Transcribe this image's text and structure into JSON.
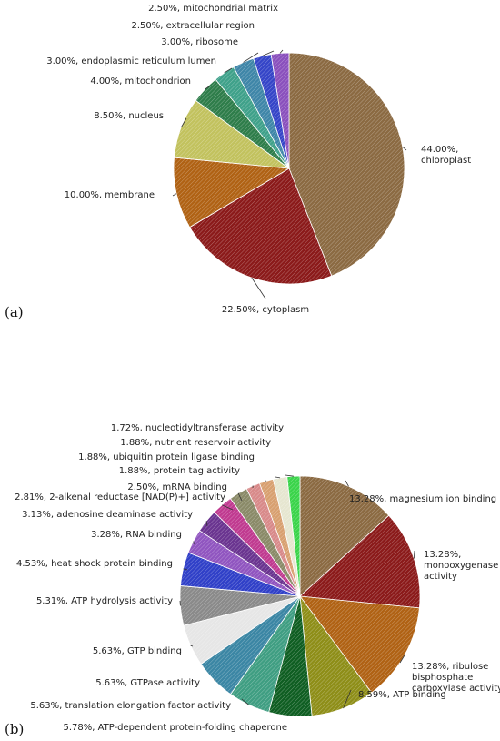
{
  "chart_data": [
    {
      "type": "pie",
      "panel_label": "(a)",
      "start_angle_deg": 0,
      "slices": [
        {
          "label": "44.00%,",
          "label2": "chloroplast",
          "value": 44.0,
          "color": "#8b6a42"
        },
        {
          "label": "22.50%, cytoplasm",
          "value": 22.5,
          "color": "#8b1a1a"
        },
        {
          "label": "10.00%, membrane",
          "value": 10.0,
          "color": "#b06214"
        },
        {
          "label": "8.50%, nucleus",
          "value": 8.5,
          "color": "#c2c25e"
        },
        {
          "label": "4.00%, mitochondrion",
          "value": 4.0,
          "color": "#2e7d4a"
        },
        {
          "label": "3.00%, endoplasmic reticulum lumen",
          "value": 3.0,
          "color": "#3fa18a"
        },
        {
          "label": "3.00%, ribosome",
          "value": 3.0,
          "color": "#3f86a8"
        },
        {
          "label": "2.50%, extracellular region",
          "value": 2.5,
          "color": "#3545c8"
        },
        {
          "label": "2.50%, mitochondrial matrix",
          "value": 2.5,
          "color": "#8a50bd"
        }
      ]
    },
    {
      "type": "pie",
      "panel_label": "(b)",
      "start_angle_deg": 0,
      "slices": [
        {
          "label": "13.28%, magnesium ion binding",
          "value": 13.28,
          "color": "#8b6a42"
        },
        {
          "label": "13.28%,",
          "label2": "monooxygenase",
          "label3": "activity",
          "value": 13.28,
          "color": "#8b1a1a"
        },
        {
          "label": "13.28%, ribulose",
          "label2": "bisphosphate",
          "label3": "carboxylase activity",
          "value": 13.28,
          "color": "#b06214"
        },
        {
          "label": "8.59%, ATP binding",
          "value": 8.59,
          "color": "#8e8e18"
        },
        {
          "label": "5.78%, ATP-dependent protein-folding chaperone",
          "value": 5.78,
          "color": "#0f5e22"
        },
        {
          "label": "5.63%, translation elongation factor activity",
          "value": 5.63,
          "color": "#3f9e82"
        },
        {
          "label": "5.63%, GTPase activity",
          "value": 5.63,
          "color": "#3b86a4"
        },
        {
          "label": "5.63%, GTP binding",
          "value": 5.63,
          "color": "#e6e6e6"
        },
        {
          "label": "5.31%, ATP hydrolysis activity",
          "value": 5.31,
          "color": "#8a8a8a"
        },
        {
          "label": "4.53%, heat shock protein binding",
          "value": 4.53,
          "color": "#3040c8"
        },
        {
          "label": "3.28%, RNA binding",
          "value": 3.28,
          "color": "#9055c0"
        },
        {
          "label": "3.13%, adenosine deaminase activity",
          "value": 3.13,
          "color": "#6a3490"
        },
        {
          "label": "2.81%, 2-alkenal reductase [NAD(P)+] activity",
          "value": 2.81,
          "color": "#c03a90"
        },
        {
          "label": "2.50%, mRNA binding",
          "value": 2.5,
          "color": "#8a8a68"
        },
        {
          "label": "1.88%, protein tag activity",
          "value": 1.88,
          "color": "#d88a8a"
        },
        {
          "label": "1.88%, ubiquitin protein ligase binding",
          "value": 1.88,
          "color": "#d8a070"
        },
        {
          "label": "1.88%, nutrient reservoir activity",
          "value": 1.88,
          "color": "#e6e6d0"
        },
        {
          "label": "1.72%, nucleotidyltransferase activity",
          "value": 1.72,
          "color": "#3ad44a"
        }
      ]
    }
  ]
}
